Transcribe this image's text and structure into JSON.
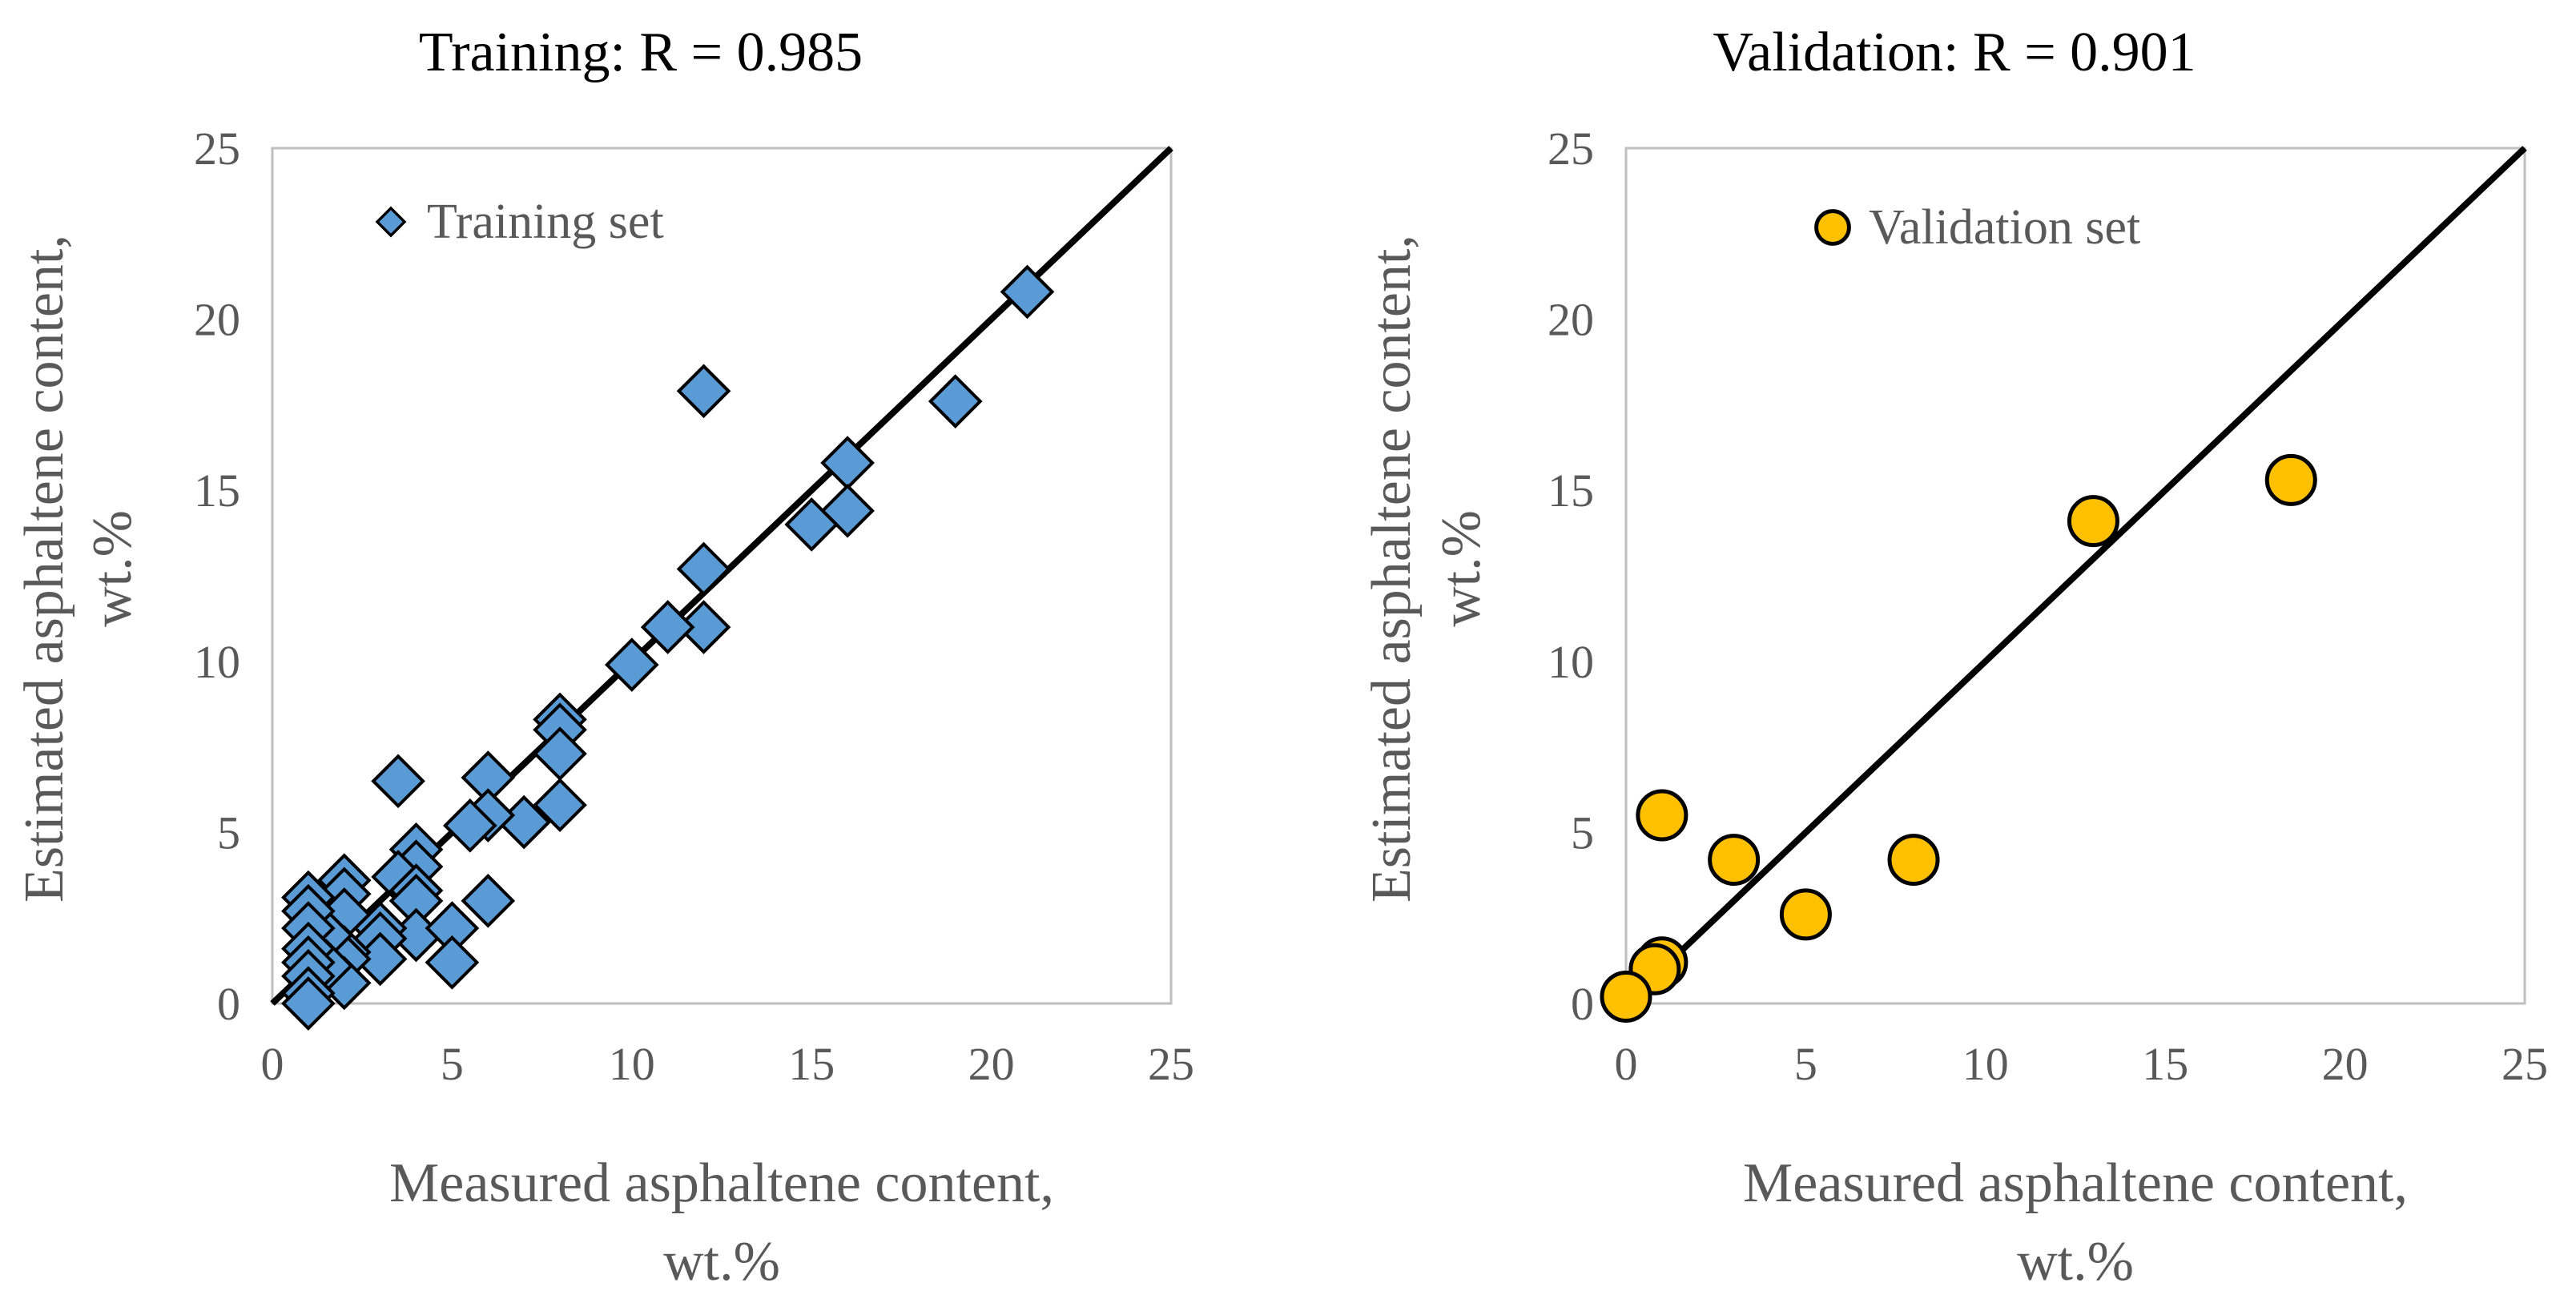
{
  "chart_data": [
    {
      "type": "scatter",
      "title": "Training: R = 0.985",
      "xlabel": [
        "Measured asphaltene content,",
        "wt.%"
      ],
      "ylabel": [
        "Estimated asphaltene content,",
        "wt.%"
      ],
      "xlim": [
        0,
        25
      ],
      "ylim": [
        0,
        25
      ],
      "xticks": [
        "0",
        "5",
        "10",
        "15",
        "20",
        "25"
      ],
      "yticks": [
        "0",
        "5",
        "10",
        "15",
        "20",
        "25"
      ],
      "grid": false,
      "legend": {
        "label": "Training set",
        "position": "top-left"
      },
      "marker": "diamond",
      "color": "#5B9BD5",
      "edge_color": "#000000",
      "fit_line": {
        "x": [
          0,
          25
        ],
        "y": [
          0,
          25
        ]
      },
      "series": [
        {
          "name": "Training set",
          "points": [
            [
              21,
              20.8
            ],
            [
              19,
              17.6
            ],
            [
              12,
              17.9
            ],
            [
              16,
              15.8
            ],
            [
              16,
              14.4
            ],
            [
              15,
              14.0
            ],
            [
              12,
              12.7
            ],
            [
              12,
              11.0
            ],
            [
              11,
              11.0
            ],
            [
              10,
              9.9
            ],
            [
              8,
              8.3
            ],
            [
              8,
              8.0
            ],
            [
              8,
              7.3
            ],
            [
              8,
              5.8
            ],
            [
              7,
              5.3
            ],
            [
              6,
              6.6
            ],
            [
              6,
              5.5
            ],
            [
              5.5,
              5.2
            ],
            [
              6,
              3.0
            ],
            [
              3.5,
              6.5
            ],
            [
              4,
              4.5
            ],
            [
              4,
              4.0
            ],
            [
              3.5,
              3.7
            ],
            [
              4,
              3.3
            ],
            [
              4,
              3.0
            ],
            [
              4,
              2.0
            ],
            [
              5,
              2.2
            ],
            [
              5,
              1.2
            ],
            [
              3,
              2.2
            ],
            [
              3,
              1.9
            ],
            [
              3,
              1.3
            ],
            [
              2,
              3.6
            ],
            [
              2,
              3.2
            ],
            [
              2,
              2.6
            ],
            [
              2,
              1.5
            ],
            [
              2,
              1.3
            ],
            [
              2,
              0.6
            ],
            [
              1.5,
              2.0
            ],
            [
              1.5,
              1.1
            ],
            [
              1,
              3.1
            ],
            [
              1,
              2.7
            ],
            [
              1,
              2.2
            ],
            [
              1,
              1.6
            ],
            [
              1,
              1.2
            ],
            [
              1,
              0.8
            ],
            [
              1,
              0.3
            ],
            [
              1,
              0.0
            ]
          ]
        }
      ]
    },
    {
      "type": "scatter",
      "title": "Validation: R = 0.901",
      "xlabel": [
        "Measured asphaltene content,",
        "wt.%"
      ],
      "ylabel": [
        "Estimated asphaltene content,",
        "wt.%"
      ],
      "xlim": [
        0,
        25
      ],
      "ylim": [
        0,
        25
      ],
      "xticks": [
        "0",
        "5",
        "10",
        "15",
        "20",
        "25"
      ],
      "yticks": [
        "0",
        "5",
        "10",
        "15",
        "20",
        "25"
      ],
      "grid": false,
      "legend": {
        "label": "Validation set",
        "position": "top-center"
      },
      "marker": "circle",
      "color": "#FFC000",
      "edge_color": "#000000",
      "fit_line": {
        "x": [
          0,
          25
        ],
        "y": [
          0,
          25
        ]
      },
      "series": [
        {
          "name": "Validation set",
          "points": [
            [
              18.5,
              15.3
            ],
            [
              13,
              14.1
            ],
            [
              8,
              4.2
            ],
            [
              5,
              2.6
            ],
            [
              3,
              4.2
            ],
            [
              1,
              5.5
            ],
            [
              1,
              1.2
            ],
            [
              0.8,
              1.0
            ],
            [
              0,
              0.2
            ]
          ]
        }
      ]
    }
  ]
}
